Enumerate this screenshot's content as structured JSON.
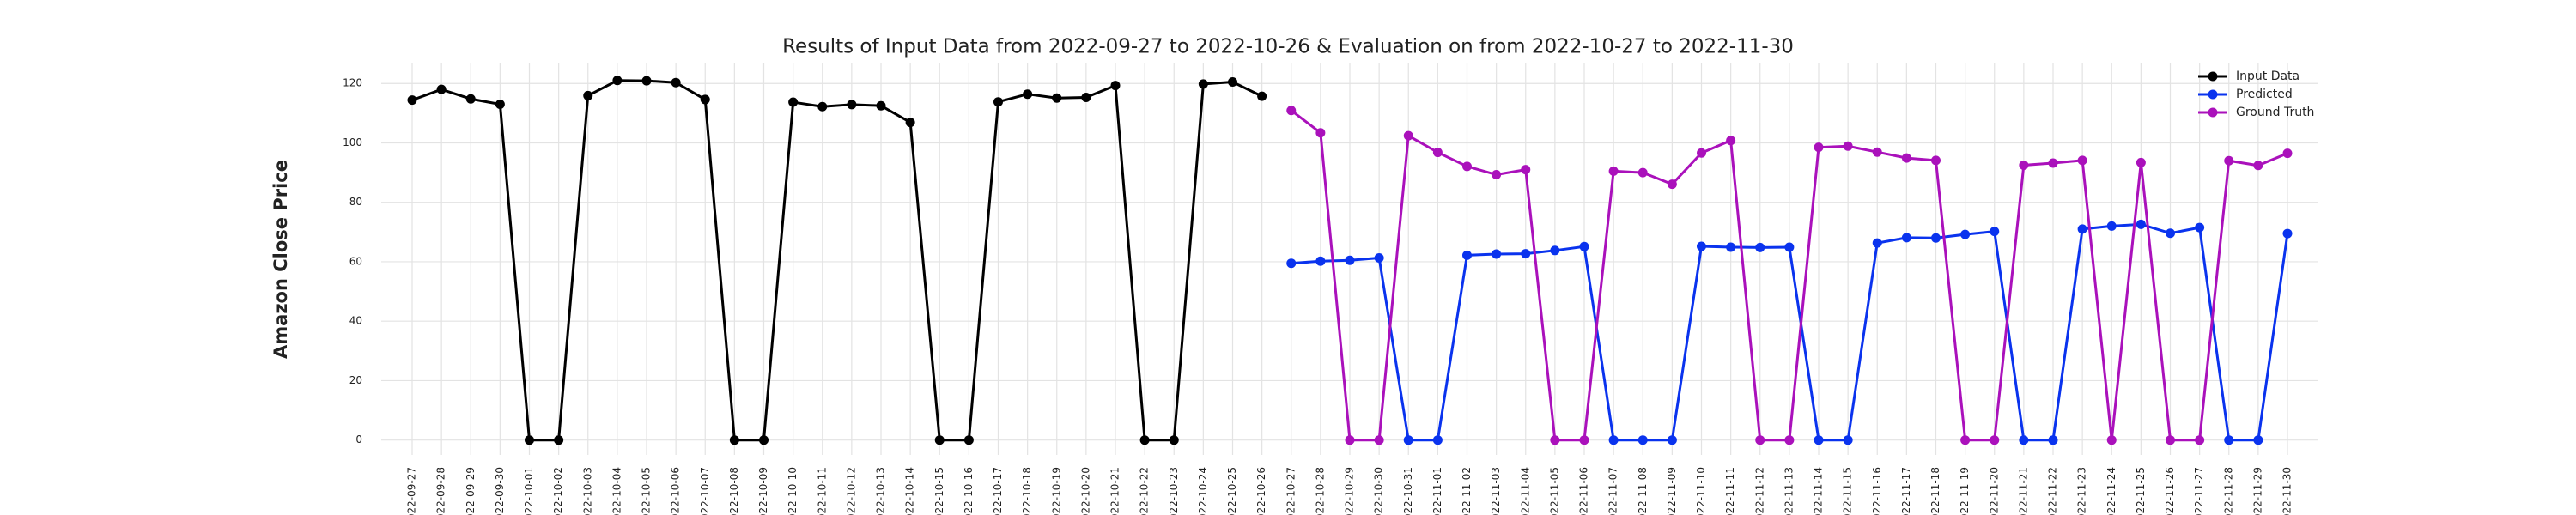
{
  "chart_data": {
    "type": "line",
    "title": "Results of Input Data from 2022-09-27 to 2022-10-26 & Evaluation on from 2022-10-27 to 2022-11-30",
    "y_label": "Amazon Close Price",
    "categories": [
      "2022-09-27",
      "2022-09-28",
      "2022-09-29",
      "2022-09-30",
      "2022-10-01",
      "2022-10-02",
      "2022-10-03",
      "2022-10-04",
      "2022-10-05",
      "2022-10-06",
      "2022-10-07",
      "2022-10-08",
      "2022-10-09",
      "2022-10-10",
      "2022-10-11",
      "2022-10-12",
      "2022-10-13",
      "2022-10-14",
      "2022-10-15",
      "2022-10-16",
      "2022-10-17",
      "2022-10-18",
      "2022-10-19",
      "2022-10-20",
      "2022-10-21",
      "2022-10-22",
      "2022-10-23",
      "2022-10-24",
      "2022-10-25",
      "2022-10-26",
      "2022-10-27",
      "2022-10-28",
      "2022-10-29",
      "2022-10-30",
      "2022-10-31",
      "2022-11-01",
      "2022-11-02",
      "2022-11-03",
      "2022-11-04",
      "2022-11-05",
      "2022-11-06",
      "2022-11-07",
      "2022-11-08",
      "2022-11-09",
      "2022-11-10",
      "2022-11-11",
      "2022-11-12",
      "2022-11-13",
      "2022-11-14",
      "2022-11-15",
      "2022-11-16",
      "2022-11-17",
      "2022-11-18",
      "2022-11-19",
      "2022-11-20",
      "2022-11-21",
      "2022-11-22",
      "2022-11-23",
      "2022-11-24",
      "2022-11-25",
      "2022-11-26",
      "2022-11-27",
      "2022-11-28",
      "2022-11-29",
      "2022-11-30"
    ],
    "series": [
      {
        "name": "Input Data",
        "color": "#000000",
        "values": [
          114.4,
          118,
          114.8,
          113,
          0,
          0,
          115.9,
          121,
          120.9,
          120.3,
          114.6,
          0,
          0,
          113.7,
          112.2,
          112.9,
          112.5,
          106.9,
          0,
          0,
          113.8,
          116.4,
          115.1,
          115.3,
          119.3,
          0,
          0,
          119.8,
          120.5,
          115.7,
          null,
          null,
          null,
          null,
          null,
          null,
          null,
          null,
          null,
          null,
          null,
          null,
          null,
          null,
          null,
          null,
          null,
          null,
          null,
          null,
          null,
          null,
          null,
          null,
          null,
          null,
          null,
          null,
          null,
          null,
          null,
          null,
          null,
          null,
          null
        ]
      },
      {
        "name": "Predicted",
        "color": "#0a33ee",
        "values": [
          null,
          null,
          null,
          null,
          null,
          null,
          null,
          null,
          null,
          null,
          null,
          null,
          null,
          null,
          null,
          null,
          null,
          null,
          null,
          null,
          null,
          null,
          null,
          null,
          null,
          null,
          null,
          null,
          null,
          null,
          59.5,
          60.2,
          60.5,
          61.3,
          0,
          0,
          62.2,
          62.6,
          62.7,
          63.8,
          65.1,
          0,
          0,
          0,
          65.2,
          64.9,
          64.8,
          64.9,
          0,
          0,
          66.3,
          68.1,
          68,
          69.2,
          70.2,
          0,
          0,
          71,
          72,
          72.6,
          69.6,
          71.5,
          0,
          0,
          69.5
        ]
      },
      {
        "name": "Ground Truth",
        "color": "#aa11bb",
        "values": [
          null,
          null,
          null,
          null,
          null,
          null,
          null,
          null,
          null,
          null,
          null,
          null,
          null,
          null,
          null,
          null,
          null,
          null,
          null,
          null,
          null,
          null,
          null,
          null,
          null,
          null,
          null,
          null,
          null,
          null,
          110.9,
          103.4,
          0,
          0,
          102.4,
          96.8,
          92.1,
          89.3,
          91,
          0,
          0,
          90.5,
          90,
          86.1,
          96.6,
          100.8,
          0,
          0,
          98.5,
          98.9,
          96.9,
          94.9,
          94.1,
          0,
          0,
          92.5,
          93.2,
          94.1,
          0,
          93.4,
          0,
          0,
          94,
          92.4,
          96.5
        ]
      }
    ],
    "ylim": [
      -5,
      127
    ],
    "yticks": [
      0,
      20,
      40,
      60,
      80,
      100,
      120
    ],
    "grid": true,
    "legend": "upper right"
  }
}
